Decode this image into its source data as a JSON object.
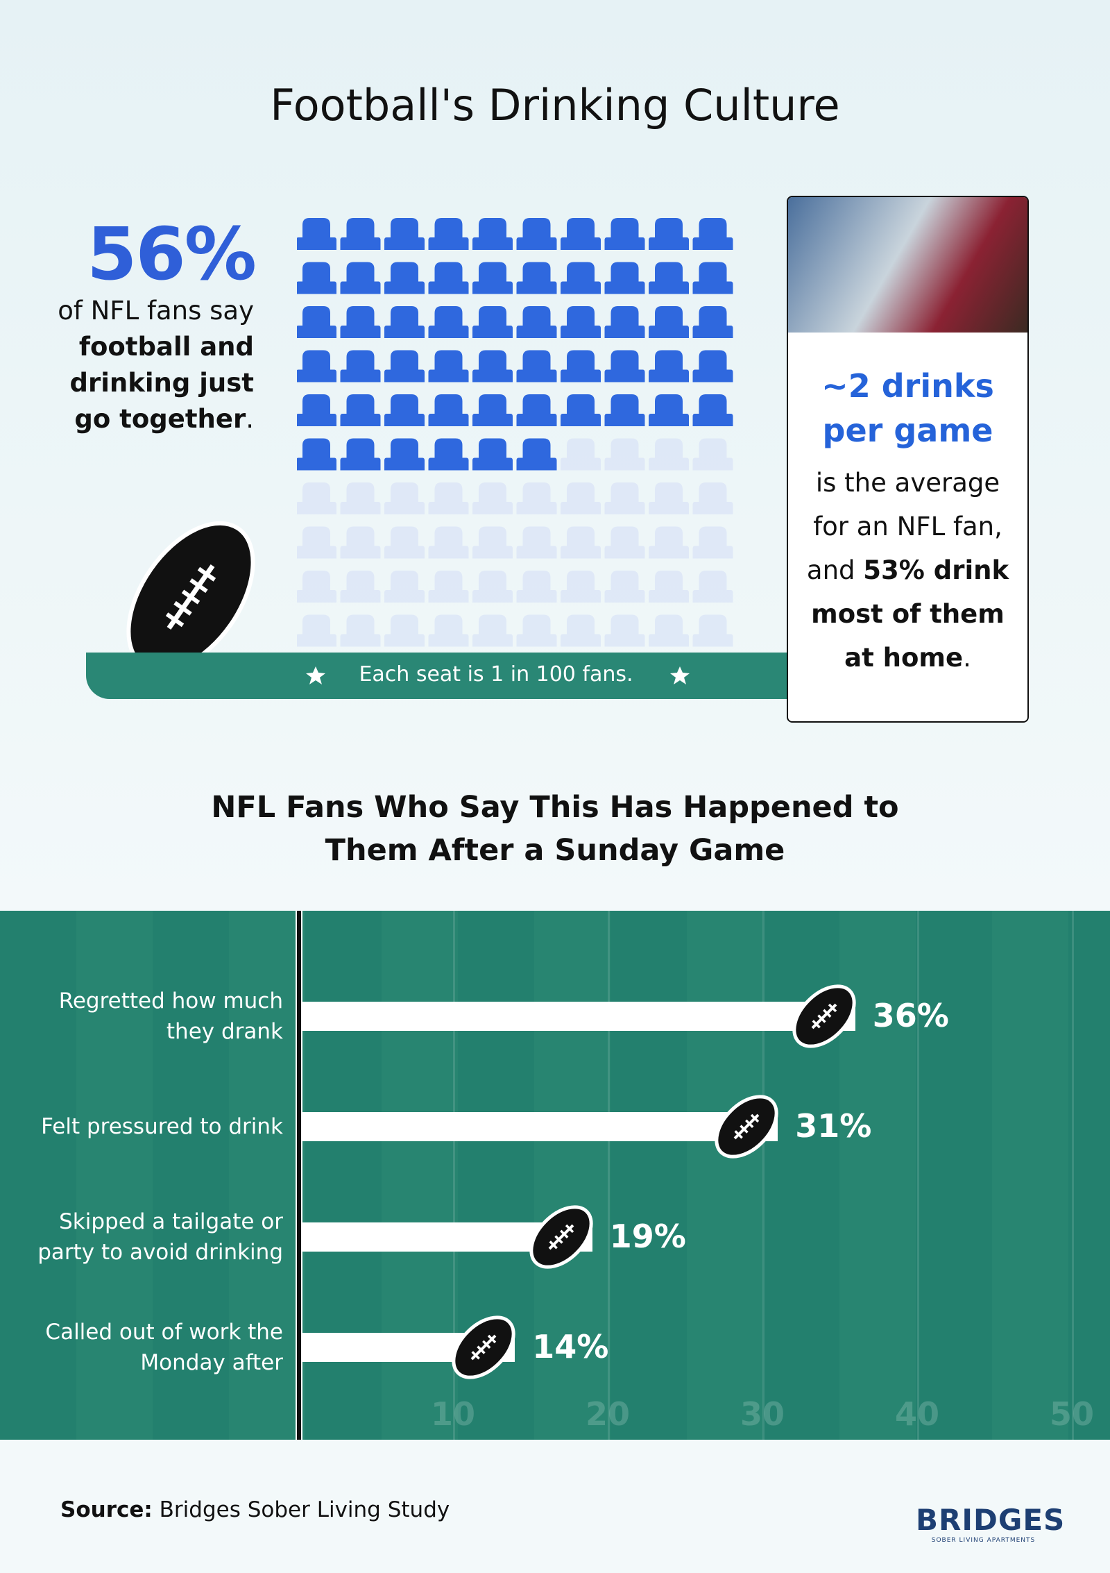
{
  "title": "Football's Drinking Culture",
  "stat": {
    "value_label": "56%",
    "text_parts": [
      "of NFL fans say ",
      "football and drinking just go together",
      "."
    ]
  },
  "waffle": {
    "value": 56,
    "seats": 100,
    "filled_color": "#2f68de",
    "empty_color": "#dbe5f6",
    "note": "Each seat is 1 in 100 fans."
  },
  "card": {
    "highlight": "~2 drinks per game",
    "body_parts": [
      "is the average for an NFL fan, and ",
      "53% drink most of them at home",
      "."
    ]
  },
  "chart_data": {
    "type": "bar",
    "orientation": "horizontal",
    "title": "NFL Fans Who Say This Has Happened to Them After a Sunday Game",
    "categories": [
      "Regretted how much they drank",
      "Felt pressured to drink",
      "Skipped a tailgate or party to avoid drinking",
      "Called out of work the Monday after"
    ],
    "values": [
      36,
      31,
      19,
      14
    ],
    "value_labels": [
      "36%",
      "31%",
      "19%",
      "14%"
    ],
    "color": "#ffffff",
    "xlim": [
      0,
      50
    ],
    "xticks": [
      10,
      20,
      30,
      40,
      50
    ],
    "grid": true
  },
  "source_label": "Source:",
  "source": "Bridges Sober Living Study",
  "logo": {
    "name": "BRIDGES",
    "tagline": "SOBER LIVING APARTMENTS"
  }
}
